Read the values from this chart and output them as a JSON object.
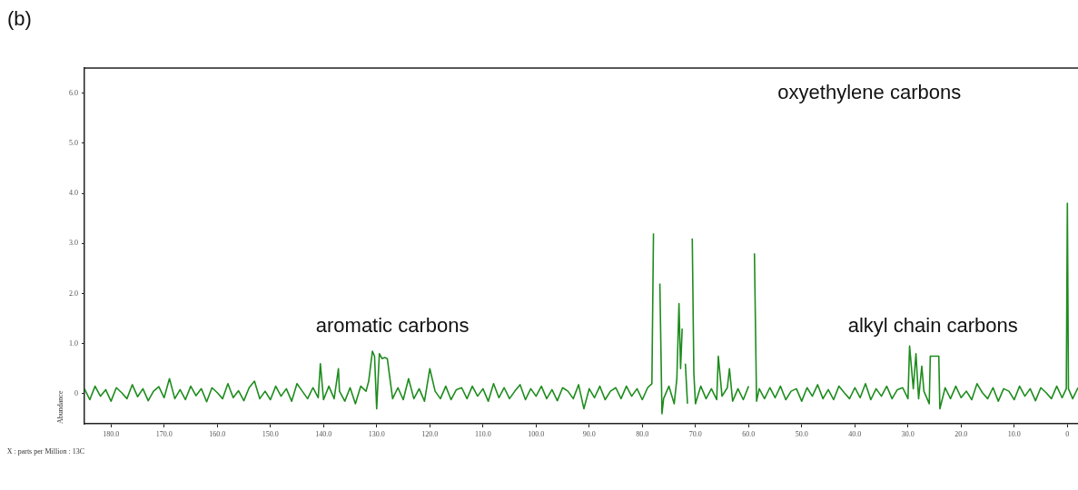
{
  "chart_data": {
    "type": "line",
    "title": "(b)",
    "xlabel": "X : parts per Million : 13C",
    "relative": false,
    "ylabel": "Abundance",
    "xlim": [
      185,
      -2
    ],
    "ylim": [
      -0.6,
      6.5
    ],
    "xticks": [
      {
        "value": 180,
        "label": "180.0"
      },
      {
        "value": 170,
        "label": "170.0"
      },
      {
        "value": 160,
        "label": "160.0"
      },
      {
        "value": 150,
        "label": "150.0"
      },
      {
        "value": 140,
        "label": "140.0"
      },
      {
        "value": 130,
        "label": "130.0"
      },
      {
        "value": 120,
        "label": "120.0"
      },
      {
        "value": 110,
        "label": "110.0"
      },
      {
        "value": 100,
        "label": "100.0"
      },
      {
        "value": 90,
        "label": "90.0"
      },
      {
        "value": 80,
        "label": "80.0"
      },
      {
        "value": 70,
        "label": "70.0"
      },
      {
        "value": 60,
        "label": "60.0"
      },
      {
        "value": 50,
        "label": "50.0"
      },
      {
        "value": 40,
        "label": "40.0"
      },
      {
        "value": 30,
        "label": "30.0"
      },
      {
        "value": 20,
        "label": "20.0"
      },
      {
        "value": 10,
        "label": "10.0"
      },
      0
    ],
    "yticks": [
      0,
      {
        "value": 1,
        "label": "1.0"
      },
      {
        "value": 2,
        "label": "2.0"
      },
      {
        "value": 3,
        "label": "3.0"
      },
      {
        "value": 4,
        "label": "4.0"
      },
      {
        "value": 5,
        "label": "5.0"
      },
      {
        "value": 6,
        "label": "6.0"
      }
    ],
    "grid": false,
    "legend": false,
    "marker": "none",
    "line_style": "solid",
    "annotations": [
      "aromatic carbons",
      "oxyethylene carbons",
      "alkyl chain carbons"
    ],
    "series": [
      {
        "color": "#1e8c1e",
        "x": [
          185,
          184,
          183,
          182,
          181,
          180,
          179,
          178,
          177,
          176,
          175,
          174,
          173,
          172,
          171,
          170,
          169,
          168,
          167,
          166,
          165,
          164,
          163,
          162,
          161,
          160,
          159,
          158,
          157,
          156,
          155,
          154,
          153,
          152,
          151,
          150,
          149,
          148,
          147,
          146,
          145,
          144,
          143,
          142,
          141,
          140.6,
          140,
          139,
          138,
          137.2,
          137,
          136,
          135,
          134,
          133,
          132,
          131.5,
          130.8,
          130.4,
          130,
          129.5,
          129,
          128.5,
          128,
          127.5,
          127,
          126,
          125,
          124,
          123,
          122,
          121,
          120,
          119,
          118,
          117,
          116,
          115,
          114,
          113,
          112,
          111,
          110,
          109,
          108,
          107,
          106,
          105,
          104,
          103,
          102,
          101,
          100,
          99,
          98,
          97,
          96,
          95,
          94,
          93,
          92,
          91,
          90,
          89,
          88,
          87,
          86,
          85,
          84,
          83,
          82,
          81,
          80,
          79,
          78.2,
          77.9,
          77.7,
          77.3,
          77,
          76.7,
          76.3,
          76,
          75,
          74,
          73.5,
          73.1,
          72.8,
          72.5,
          72.2,
          71.9,
          71.5,
          71.2,
          71,
          70.8,
          70.6,
          70.3,
          70,
          69,
          68,
          67,
          66,
          65.7,
          65,
          64,
          63.6,
          63,
          62,
          61,
          60,
          59.2,
          58.9,
          58.5,
          58,
          57,
          56,
          55,
          54,
          53,
          52,
          51,
          50,
          49,
          48,
          47,
          46,
          45,
          44,
          43,
          42,
          41,
          40,
          39,
          38,
          37,
          36,
          35,
          34,
          33,
          32,
          31,
          30,
          29.7,
          29,
          28.5,
          28,
          27.4,
          27,
          26,
          25.8,
          25.2,
          24.6,
          24.2,
          24,
          23,
          22,
          21,
          20,
          19,
          18,
          17,
          16,
          15,
          14,
          13,
          12,
          11,
          10,
          9,
          8,
          7,
          6,
          5,
          4,
          3,
          2,
          1,
          0.2,
          0,
          -0.2,
          -1,
          -2
        ],
        "values": [
          0.1,
          -0.12,
          0.15,
          -0.05,
          0.08,
          -0.15,
          0.12,
          0.02,
          -0.1,
          0.18,
          -0.06,
          0.1,
          -0.14,
          0.05,
          0.14,
          -0.08,
          0.3,
          -0.1,
          0.08,
          -0.12,
          0.15,
          -0.04,
          0.1,
          -0.16,
          0.12,
          0.02,
          -0.1,
          0.2,
          -0.08,
          0.06,
          -0.14,
          0.12,
          0.25,
          -0.1,
          0.05,
          -0.12,
          0.15,
          -0.05,
          0.1,
          -0.15,
          0.2,
          0.05,
          -0.1,
          0.12,
          -0.08,
          0.6,
          -0.12,
          0.15,
          -0.1,
          0.5,
          0.05,
          -0.15,
          0.12,
          -0.2,
          0.15,
          0.05,
          0.25,
          0.85,
          0.75,
          -0.3,
          0.8,
          0.7,
          0.72,
          0.7,
          0.3,
          -0.1,
          0.12,
          -0.12,
          0.3,
          -0.1,
          0.1,
          -0.15,
          0.5,
          0.05,
          -0.1,
          0.15,
          -0.12,
          0.08,
          0.12,
          -0.1,
          0.15,
          -0.05,
          0.1,
          -0.15,
          0.2,
          -0.08,
          0.12,
          -0.1,
          0.05,
          0.18,
          -0.12,
          0.1,
          -0.05,
          0.15,
          -0.1,
          0.08,
          -0.14,
          0.12,
          0.05,
          -0.1,
          0.18,
          -0.3,
          0.1,
          -0.08,
          0.15,
          -0.12,
          0.05,
          0.12,
          -0.1,
          0.15,
          -0.05,
          0.1,
          -0.12,
          0.12,
          0.2,
          3.2,
          null,
          null,
          null,
          2.2,
          -0.4,
          -0.1,
          0.15,
          -0.2,
          0.3,
          1.8,
          0.5,
          1.3,
          null,
          0.6,
          -0.2,
          null,
          null,
          null,
          3.1,
          0.4,
          -0.2,
          0.15,
          -0.1,
          0.1,
          -0.12,
          0.75,
          -0.05,
          0.12,
          0.5,
          -0.15,
          0.1,
          -0.12,
          0.15,
          null,
          2.8,
          -0.15,
          0.1,
          -0.1,
          0.12,
          -0.08,
          0.15,
          -0.12,
          0.05,
          0.1,
          -0.15,
          0.12,
          -0.05,
          0.18,
          -0.1,
          0.08,
          -0.12,
          0.15,
          0.02,
          -0.1,
          0.12,
          -0.08,
          0.2,
          -0.12,
          0.1,
          -0.05,
          0.15,
          -0.1,
          0.08,
          0.12,
          -0.1,
          0.95,
          0.1,
          0.8,
          -0.1,
          0.55,
          0.05,
          -0.2,
          0.75,
          0.75,
          0.75,
          0.75,
          -0.3,
          0.12,
          -0.1,
          0.15,
          -0.08,
          0.05,
          -0.12,
          0.2,
          0.02,
          -0.1,
          0.12,
          -0.15,
          0.1,
          0.05,
          -0.12,
          0.15,
          -0.05,
          0.1,
          -0.14,
          0.12,
          0.02,
          -0.1,
          0.15,
          -0.08,
          0.1,
          3.8,
          0.1,
          -0.1,
          0.12
        ]
      }
    ]
  }
}
